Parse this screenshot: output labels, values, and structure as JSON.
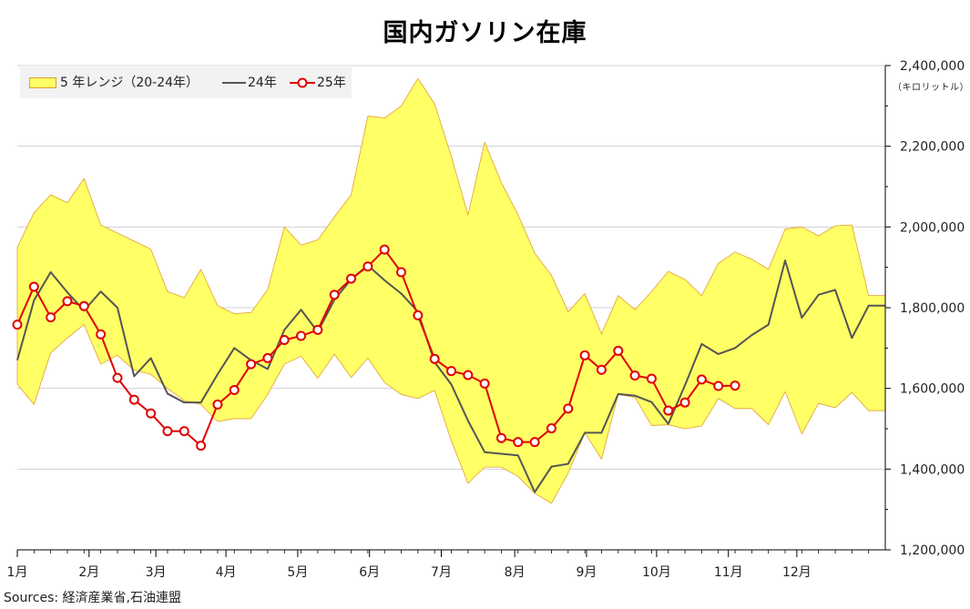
{
  "chart_data": {
    "type": "line",
    "title": "国内ガソリン在庫",
    "y_unit_label": "（キロリットル）",
    "source": "Sources: 経済産業省,石油連盟",
    "ylim": [
      1200000,
      2400000
    ],
    "y_ticks": [
      1200000,
      1400000,
      1600000,
      1800000,
      2000000,
      2200000,
      2400000
    ],
    "y_tick_labels": [
      "1,200,000",
      "1,400,000",
      "1,600,000",
      "1,800,000",
      "2,000,000",
      "2,200,000",
      "2,400,000"
    ],
    "x_axis": {
      "unit": "week",
      "range": [
        1,
        53
      ]
    },
    "x_ticks": [
      {
        "label": "1月",
        "week": 1
      },
      {
        "label": "2月",
        "week": 5.3
      },
      {
        "label": "3月",
        "week": 9.3
      },
      {
        "label": "4月",
        "week": 13.5
      },
      {
        "label": "5月",
        "week": 17.8
      },
      {
        "label": "6月",
        "week": 22.1
      },
      {
        "label": "7月",
        "week": 26.4
      },
      {
        "label": "8月",
        "week": 30.8
      },
      {
        "label": "9月",
        "week": 35.1
      },
      {
        "label": "10月",
        "week": 39.3
      },
      {
        "label": "11月",
        "week": 43.6
      },
      {
        "label": "12月",
        "week": 47.7
      }
    ],
    "legend": {
      "position": "top-left",
      "items": [
        {
          "label": "5 年レンジ（20-24年）",
          "kind": "area"
        },
        {
          "label": "24年",
          "kind": "line"
        },
        {
          "label": "25年",
          "kind": "line-marker"
        }
      ]
    },
    "colors": {
      "range_fill": "#ffff66",
      "range_edge": "#e0a030",
      "line_24": "#555555",
      "line_25": "#e00000"
    },
    "range_band": {
      "name": "5 年レンジ（20-24年）",
      "x": [
        1,
        2,
        3,
        4,
        5,
        6,
        7,
        8,
        9,
        10,
        11,
        12,
        13,
        14,
        15,
        16,
        17,
        18,
        19,
        20,
        21,
        22,
        23,
        24,
        25,
        26,
        27,
        28,
        29,
        30,
        31,
        32,
        33,
        34,
        35,
        36,
        37,
        38,
        39,
        40,
        41,
        42,
        43,
        44,
        45,
        46,
        47,
        48,
        49,
        50,
        51,
        52,
        53
      ],
      "high": [
        1950000,
        2035000,
        2080000,
        2060000,
        2120000,
        2005000,
        1985000,
        1965000,
        1945000,
        1840000,
        1825000,
        1895000,
        1805000,
        1785000,
        1788000,
        1845000,
        2000000,
        1955000,
        1968000,
        2025000,
        2080000,
        2275000,
        2270000,
        2300000,
        2368000,
        2305000,
        2175000,
        2030000,
        2210000,
        2110000,
        2030000,
        1935000,
        1880000,
        1790000,
        1835000,
        1735000,
        1830000,
        1795000,
        1840000,
        1890000,
        1870000,
        1830000,
        1910000,
        1938000,
        1920000,
        1895000,
        1995000,
        2000000,
        1978000,
        2003000,
        2005000,
        1830000,
        1830000
      ],
      "low": [
        1610000,
        1560000,
        1688000,
        1725000,
        1758000,
        1660000,
        1682000,
        1645000,
        1635000,
        1600000,
        1570000,
        1560000,
        1518000,
        1525000,
        1525000,
        1585000,
        1660000,
        1680000,
        1625000,
        1685000,
        1627000,
        1675000,
        1615000,
        1585000,
        1575000,
        1595000,
        1470000,
        1365000,
        1405000,
        1405000,
        1382000,
        1340000,
        1315000,
        1390000,
        1490000,
        1425000,
        1585000,
        1578000,
        1508000,
        1510000,
        1500000,
        1507000,
        1575000,
        1550000,
        1550000,
        1510000,
        1592000,
        1487000,
        1563000,
        1552000,
        1590000,
        1545000,
        1545000
      ]
    },
    "series": [
      {
        "name": "24年",
        "x": [
          1,
          2,
          3,
          4,
          5,
          6,
          7,
          8,
          9,
          10,
          11,
          12,
          13,
          14,
          15,
          16,
          17,
          18,
          19,
          20,
          21,
          22,
          23,
          24,
          25,
          26,
          27,
          28,
          29,
          30,
          31,
          32,
          33,
          34,
          35,
          36,
          37,
          38,
          39,
          40,
          41,
          42,
          43,
          44,
          45,
          46,
          47,
          48,
          49,
          50,
          51,
          52,
          53
        ],
        "values": [
          1670000,
          1818000,
          1888000,
          1838000,
          1793000,
          1840000,
          1800000,
          1630000,
          1675000,
          1587000,
          1565000,
          1565000,
          1635000,
          1700000,
          1670000,
          1648000,
          1745000,
          1795000,
          1740000,
          1820000,
          1870000,
          1905000,
          1868000,
          1835000,
          1790000,
          1665000,
          1610000,
          1520000,
          1442000,
          1438000,
          1434000,
          1343000,
          1406000,
          1413000,
          1490000,
          1490000,
          1586000,
          1582000,
          1566000,
          1512000,
          1608000,
          1710000,
          1685000,
          1700000,
          1732000,
          1758000,
          1917000,
          1775000,
          1832000,
          1844000,
          1725000,
          1805000,
          1805000
        ]
      },
      {
        "name": "25年",
        "x": [
          1,
          2,
          3,
          4,
          5,
          6,
          7,
          8,
          9,
          10,
          11,
          12,
          13,
          14,
          15,
          16,
          17,
          18,
          19,
          20,
          21,
          22,
          23,
          24,
          25,
          26,
          27,
          28,
          29,
          30,
          31,
          32,
          33,
          34,
          35,
          36,
          37,
          38,
          39,
          40,
          41,
          42,
          43,
          44
        ],
        "values": [
          1758000,
          1852000,
          1776000,
          1816000,
          1804000,
          1734000,
          1626000,
          1572000,
          1538000,
          1494000,
          1494000,
          1458000,
          1560000,
          1596000,
          1660000,
          1675000,
          1720000,
          1730000,
          1745000,
          1832000,
          1872000,
          1902000,
          1944000,
          1888000,
          1781000,
          1673000,
          1643000,
          1633000,
          1612000,
          1477000,
          1467000,
          1467000,
          1501000,
          1550000,
          1682000,
          1646000,
          1693000,
          1632000,
          1624000,
          1545000,
          1565000,
          1622000,
          1606000,
          1607000
        ]
      }
    ]
  }
}
